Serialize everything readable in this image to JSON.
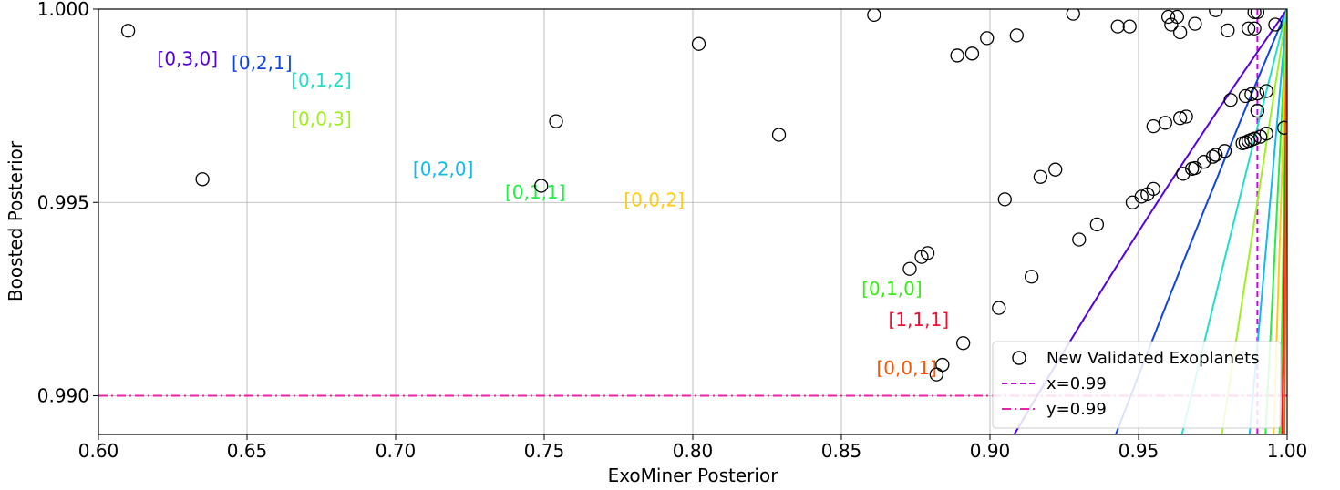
{
  "chart_data": {
    "type": "line",
    "title": "",
    "xlabel": "ExoMiner Posterior",
    "ylabel": "Boosted Posterior",
    "xlim": [
      0.6,
      1.0
    ],
    "ylim": [
      0.989,
      1.0
    ],
    "grid": true,
    "xticks": [
      "0.60",
      "0.65",
      "0.70",
      "0.75",
      "0.80",
      "0.85",
      "0.90",
      "0.95",
      "1.00"
    ],
    "yticks": [
      {
        "value": 0.99,
        "label": "0.990"
      },
      {
        "value": 0.995,
        "label": "0.995"
      },
      {
        "value": 1.0,
        "label": "1.000"
      }
    ],
    "series": [
      {
        "label": "[0,3,0]",
        "color": "#5500dd",
        "factor": 9.09,
        "label_at": [
          0.63,
          0.99855
        ]
      },
      {
        "label": "[0,2,1]",
        "color": "#1144dd",
        "factor": 5.5,
        "label_at": [
          0.655,
          0.99845
        ]
      },
      {
        "label": "[0,1,2]",
        "color": "#22ddcc",
        "factor": 3.3,
        "label_at": [
          0.675,
          0.998
        ]
      },
      {
        "label": "[0,0,3]",
        "color": "#a0f020",
        "factor": 2.02,
        "label_at": [
          0.675,
          0.997
        ]
      },
      {
        "label": "[0,2,0]",
        "color": "#11bbee",
        "factor": 1.15,
        "label_at": [
          0.716,
          0.9957
        ]
      },
      {
        "label": "[0,1,1]",
        "color": "#22ee44",
        "factor": 0.66,
        "label_at": [
          0.747,
          0.9951
        ]
      },
      {
        "label": "[0,0,2]",
        "color": "#ffcc11",
        "factor": 0.41,
        "label_at": [
          0.787,
          0.9949
        ]
      },
      {
        "label": "[0,1,0]",
        "color": "#33ee11",
        "factor": 0.21,
        "label_at": [
          0.867,
          0.9926
        ]
      },
      {
        "label": "[1,1,1]",
        "color": "#ee1133",
        "factor": 0.13,
        "label_at": [
          0.876,
          0.9918
        ]
      },
      {
        "label": "[0,0,1]",
        "color": "#ff5500",
        "factor": 0.082,
        "label_at": [
          0.872,
          0.99055
        ]
      }
    ],
    "scatter": {
      "name": "New Validated Exoplanets",
      "points": [
        [
          0.61,
          0.99944
        ],
        [
          0.635,
          0.9956
        ],
        [
          0.754,
          0.9971
        ],
        [
          0.749,
          0.99543
        ],
        [
          0.802,
          0.9991
        ],
        [
          0.829,
          0.99675
        ],
        [
          0.861,
          0.99985
        ],
        [
          0.873,
          0.99328
        ],
        [
          0.877,
          0.99359
        ],
        [
          0.879,
          0.99369
        ],
        [
          0.884,
          0.9908
        ],
        [
          0.882,
          0.99055
        ],
        [
          0.889,
          0.9988
        ],
        [
          0.894,
          0.99885
        ],
        [
          0.899,
          0.99925
        ],
        [
          0.903,
          0.99227
        ],
        [
          0.891,
          0.99136
        ],
        [
          0.905,
          0.99508
        ],
        [
          0.909,
          0.99932
        ],
        [
          0.914,
          0.99308
        ],
        [
          0.917,
          0.99566
        ],
        [
          0.922,
          0.99585
        ],
        [
          0.928,
          0.99988
        ],
        [
          0.93,
          0.99404
        ],
        [
          0.936,
          0.99443
        ],
        [
          0.943,
          0.99955
        ],
        [
          0.947,
          0.99955
        ],
        [
          0.948,
          0.995
        ],
        [
          0.951,
          0.99515
        ],
        [
          0.953,
          0.99521
        ],
        [
          0.955,
          0.99697
        ],
        [
          0.955,
          0.99535
        ],
        [
          0.959,
          0.99706
        ],
        [
          0.96,
          0.9998
        ],
        [
          0.961,
          0.9996
        ],
        [
          0.963,
          0.9998
        ],
        [
          0.964,
          0.9994
        ],
        [
          0.964,
          0.99718
        ],
        [
          0.965,
          0.99574
        ],
        [
          0.966,
          0.99722
        ],
        [
          0.968,
          0.99587
        ],
        [
          0.969,
          0.99589
        ],
        [
          0.969,
          0.99962
        ],
        [
          0.972,
          0.99605
        ],
        [
          0.975,
          0.99618
        ],
        [
          0.976,
          0.99997
        ],
        [
          0.976,
          0.99623
        ],
        [
          0.979,
          0.99633
        ],
        [
          0.98,
          0.99945
        ],
        [
          0.981,
          0.99765
        ],
        [
          0.985,
          0.99653
        ],
        [
          0.986,
          0.99655
        ],
        [
          0.986,
          0.99775
        ],
        [
          0.987,
          0.99659
        ],
        [
          0.987,
          0.9995
        ],
        [
          0.988,
          0.99662
        ],
        [
          0.988,
          0.9978
        ],
        [
          0.989,
          0.99992
        ],
        [
          0.989,
          0.99665
        ],
        [
          0.989,
          0.9995
        ],
        [
          0.99,
          0.99782
        ],
        [
          0.99,
          0.99992
        ],
        [
          0.99,
          0.99737
        ],
        [
          0.991,
          0.9967
        ],
        [
          0.993,
          0.99788
        ],
        [
          0.993,
          0.99678
        ],
        [
          0.996,
          0.9996
        ],
        [
          0.999,
          0.99693
        ],
        [
          0.99,
          0.99737
        ]
      ]
    },
    "reference_lines": [
      {
        "label": "x=0.99",
        "axis": "x",
        "value": 0.99,
        "color": "#cc00ee",
        "style": "dashed"
      },
      {
        "label": "y=0.99",
        "axis": "y",
        "value": 0.99,
        "color": "#ee22aa",
        "style": "dashdot"
      }
    ],
    "legend": {
      "position": "bottom-right"
    }
  }
}
